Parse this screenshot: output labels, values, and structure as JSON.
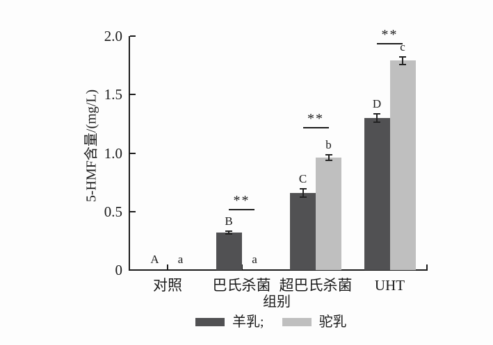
{
  "chart_data": {
    "type": "bar",
    "title": "",
    "xlabel": "组别",
    "ylabel": "5-HMF含量/(mg/L)",
    "ylim": [
      0,
      2.0
    ],
    "yticks": [
      0,
      0.5,
      1.0,
      1.5,
      2.0
    ],
    "ytick_labels": [
      "0",
      "0.5",
      "1.0",
      "1.5",
      "2.0"
    ],
    "categories": [
      "对照",
      "巴氏杀菌",
      "超巴氏杀菌",
      "UHT"
    ],
    "series": [
      {
        "name": "羊乳",
        "color": "#515153",
        "values": [
          0.01,
          0.32,
          0.66,
          1.3
        ],
        "errors": [
          0,
          0.02,
          0.04,
          0.04
        ],
        "letters": [
          "A",
          "B",
          "C",
          "D"
        ]
      },
      {
        "name": "驼乳",
        "color": "#bfbfbf",
        "values": [
          0.01,
          0.01,
          0.96,
          1.79
        ],
        "errors": [
          0,
          0,
          0.03,
          0.04
        ],
        "letters": [
          "a",
          "a",
          "b",
          "c"
        ]
      }
    ],
    "significance": [
      {
        "group_index": 1,
        "label": "**",
        "line_y": 0.52
      },
      {
        "group_index": 2,
        "label": "**",
        "line_y": 1.22
      },
      {
        "group_index": 3,
        "label": "**",
        "line_y": 1.94
      }
    ],
    "legend": [
      {
        "label": "羊乳;",
        "color": "#515153"
      },
      {
        "label": "驼乳",
        "color": "#bfbfbf"
      }
    ],
    "grid": false,
    "legend_position": "bottom"
  }
}
